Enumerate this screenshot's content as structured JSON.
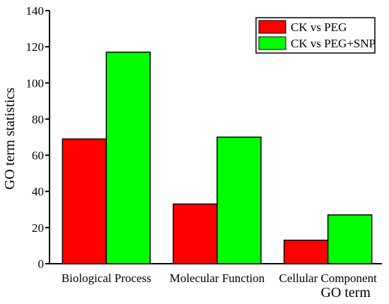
{
  "chart_data": {
    "type": "bar",
    "categories": [
      "Biological Process",
      "Molecular Function",
      "Cellular Component"
    ],
    "series": [
      {
        "name": "CK vs PEG",
        "values": [
          69,
          33,
          13
        ],
        "color": "#ff0000"
      },
      {
        "name": "CK vs PEG+SNP",
        "values": [
          117,
          70,
          27
        ],
        "color": "#00ff00"
      }
    ],
    "xlabel": "GO term",
    "ylabel": "GO term statistics",
    "ylim": [
      0,
      140
    ],
    "yticks": [
      0,
      20,
      40,
      60,
      80,
      100,
      120,
      140
    ],
    "grid": false,
    "legend_position": "top-right"
  }
}
